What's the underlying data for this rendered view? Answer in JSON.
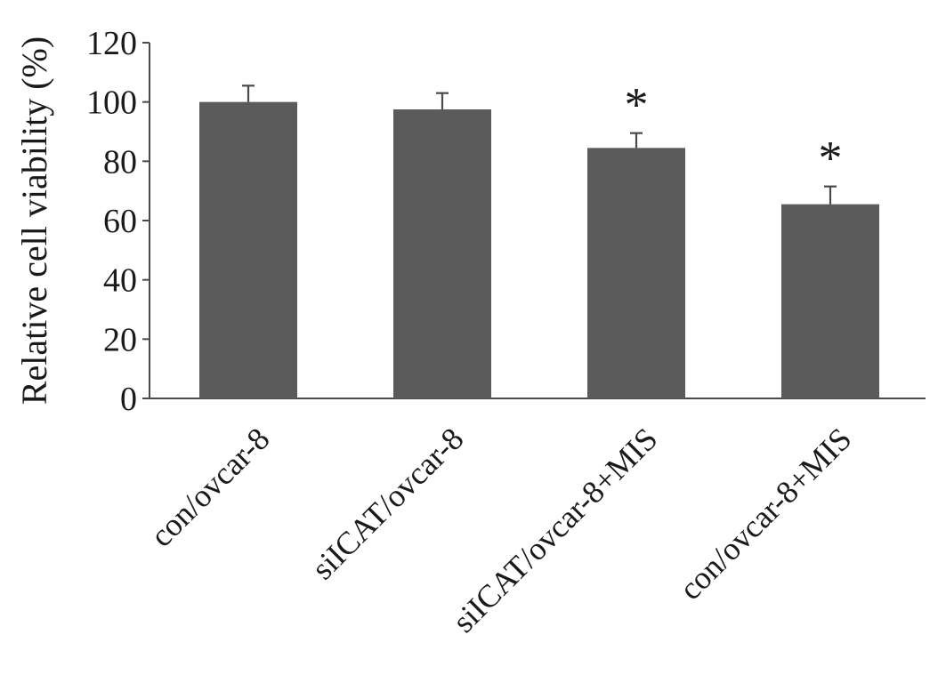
{
  "chart_data": {
    "type": "bar",
    "title": "",
    "xlabel": "",
    "ylabel": "Relative cell viability (%)",
    "ylim": [
      0,
      120
    ],
    "yticks": [
      0,
      20,
      40,
      60,
      80,
      100,
      120
    ],
    "categories": [
      "con/ovcar-8",
      "siICAT/ovcar-8",
      "siICAT/ovcar-8+MIS",
      "con/ovcar-8+MIS"
    ],
    "values": [
      100,
      97.5,
      84.5,
      65.5
    ],
    "errors": [
      5.5,
      5.5,
      5,
      6
    ],
    "significance": [
      "",
      "",
      "*",
      "*"
    ],
    "grid": false,
    "legend": "none",
    "bar_color": "#5b5b5b"
  }
}
